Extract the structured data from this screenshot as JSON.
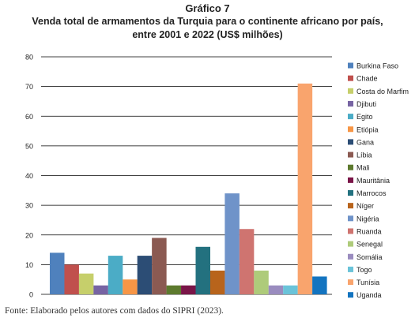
{
  "figure_label": "Gráfico 7",
  "title_line1": "Venda total de armamentos da Turquia para o continente africano por país,",
  "title_line2": "entre 2001 e 2022 (US$ milhões)",
  "source": "Fonte: Elaborado pelos autores com dados do SIPRI (2023).",
  "chart_data": {
    "type": "bar",
    "title": "Venda total de armamentos da Turquia para o continente africano por país, entre 2001 e 2022 (US$ milhões)",
    "xlabel": "",
    "ylabel": "",
    "ylim": [
      0,
      80
    ],
    "yticks": [
      0,
      10,
      20,
      30,
      40,
      50,
      60,
      70,
      80
    ],
    "grid": true,
    "legend": "right",
    "categories": [
      "Burkina Faso",
      "Chade",
      "Costa do Marfim",
      "Djibuti",
      "Egito",
      "Etiópia",
      "Gana",
      "Líbia",
      "Mali",
      "Mauritânia",
      "Marrocos",
      "Níger",
      "Nigéria",
      "Ruanda",
      "Senegal",
      "Somália",
      "Togo",
      "Tunísia",
      "Uganda"
    ],
    "values": [
      14,
      10,
      7,
      3,
      13,
      5,
      13,
      19,
      3,
      3,
      16,
      8,
      34,
      22,
      8,
      3,
      3,
      71,
      6
    ],
    "colors": [
      "#4f81bd",
      "#c0504d",
      "#c6cf6b",
      "#7764a3",
      "#4bacc6",
      "#f79646",
      "#2c4d75",
      "#8b5a52",
      "#5d7a2e",
      "#7a1548",
      "#23717f",
      "#b8641c",
      "#6f93c9",
      "#cf7470",
      "#aecb7a",
      "#9a8cbf",
      "#6ac3d9",
      "#f9a46d",
      "#1374c0"
    ]
  }
}
